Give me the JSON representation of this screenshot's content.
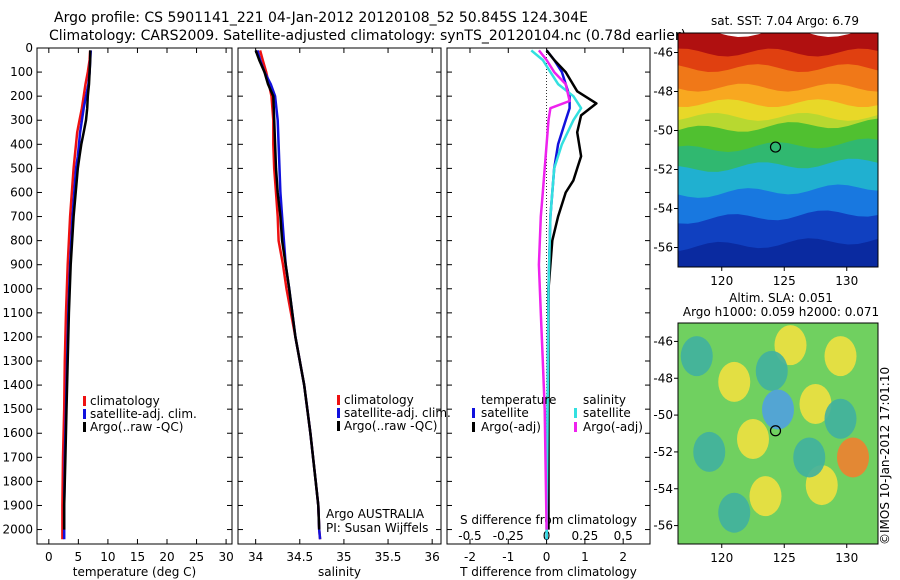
{
  "title": {
    "line1": "Argo profile: CS 5901141_221 04-Jan-2012 20120108_52 50.845S 124.304E",
    "line2": "Climatology: CARS2009. Satellite-adjusted climatology: synTS_20120104.nc (0.78d earlier)"
  },
  "credit": "©IMOS 10-Jan-2012 17:01:10",
  "colors": {
    "climatology": "#ee1111",
    "satellite": "#1111dd",
    "argo": "#000000",
    "sat_t": "#1111dd",
    "sat_s": "#33e0e0",
    "argo_s": "#ee22ee"
  },
  "chart_data": [
    {
      "id": "temperature",
      "type": "line",
      "xlabel": "temperature (deg C)",
      "ylabel": "",
      "xlim": [
        -2,
        31
      ],
      "ylim": [
        2060,
        0
      ],
      "x_ticks": [
        "0",
        "5",
        "10",
        "15",
        "20",
        "25",
        "30"
      ],
      "x_tick_values": [
        0,
        5,
        10,
        15,
        20,
        25,
        30
      ],
      "y_ticks": [
        "0",
        "100",
        "200",
        "300",
        "400",
        "500",
        "600",
        "700",
        "800",
        "900",
        "1000",
        "1100",
        "1200",
        "1300",
        "1400",
        "1500",
        "1600",
        "1700",
        "1800",
        "1900",
        "2000"
      ],
      "y_tick_values": [
        0,
        100,
        200,
        300,
        400,
        500,
        600,
        700,
        800,
        900,
        1000,
        1100,
        1200,
        1300,
        1400,
        1500,
        1600,
        1700,
        1800,
        1900,
        2000
      ],
      "legend": [
        "climatology",
        "satellite-adj. clim.",
        "Argo(..raw -QC)"
      ],
      "series": [
        {
          "name": "climatology",
          "color": "#ee1111",
          "x": [
            7.0,
            6.9,
            6.6,
            6.2,
            5.9,
            5.6,
            5.2,
            4.8,
            4.6,
            4.4,
            4.2,
            3.6,
            3.2,
            2.9,
            2.7,
            2.6,
            2.4,
            2.3,
            2.3
          ],
          "y": [
            10,
            50,
            100,
            150,
            200,
            250,
            300,
            350,
            400,
            450,
            500,
            700,
            900,
            1100,
            1300,
            1500,
            1700,
            1900,
            2040
          ]
        },
        {
          "name": "satellite-adj. clim.",
          "color": "#1111dd",
          "x": [
            7.1,
            7.0,
            6.9,
            6.7,
            6.3,
            5.9,
            5.6,
            5.3,
            5.1,
            4.9,
            4.6,
            4.0,
            3.6,
            3.3,
            3.1,
            2.9,
            2.7,
            2.6,
            2.6
          ],
          "y": [
            10,
            50,
            100,
            150,
            200,
            250,
            300,
            350,
            400,
            450,
            500,
            700,
            900,
            1100,
            1300,
            1500,
            1700,
            1900,
            2040
          ]
        },
        {
          "name": "Argo(..raw -QC)",
          "color": "#000000",
          "x": [
            7.0,
            7.0,
            6.9,
            6.8,
            6.6,
            6.5,
            6.3,
            5.9,
            5.5,
            5.2,
            4.9,
            4.2,
            3.7,
            3.4,
            3.2,
            3.0,
            2.8,
            2.6,
            2.6
          ],
          "y": [
            10,
            50,
            100,
            150,
            200,
            250,
            300,
            350,
            400,
            450,
            500,
            700,
            900,
            1100,
            1300,
            1500,
            1700,
            1900,
            2000
          ]
        }
      ]
    },
    {
      "id": "salinity",
      "type": "line",
      "xlabel": "salinity",
      "xlim": [
        33.8,
        36.1
      ],
      "ylim": [
        2060,
        0
      ],
      "x_ticks": [
        "34",
        "34.5",
        "35",
        "35.5",
        "36"
      ],
      "x_tick_values": [
        34,
        34.5,
        35,
        35.5,
        36
      ],
      "legend": [
        "climatology",
        "satellite-adj. clim.",
        "Argo(..raw -QC)"
      ],
      "annotations": [
        "Argo AUSTRALIA",
        "PI: Susan Wijffels"
      ],
      "series": [
        {
          "name": "climatology",
          "color": "#ee1111",
          "x": [
            34.05,
            34.08,
            34.12,
            34.15,
            34.18,
            34.2,
            34.2,
            34.21,
            34.23,
            34.25,
            34.26,
            34.31,
            34.35,
            34.45,
            34.55,
            34.62,
            34.68,
            34.71,
            34.72,
            34.73
          ],
          "y": [
            10,
            50,
            100,
            150,
            200,
            300,
            400,
            500,
            600,
            700,
            800,
            900,
            1000,
            1200,
            1400,
            1600,
            1800,
            1900,
            2000,
            2040
          ]
        },
        {
          "name": "satellite-adj. clim.",
          "color": "#1111dd",
          "x": [
            34.02,
            34.05,
            34.1,
            34.17,
            34.22,
            34.25,
            34.26,
            34.27,
            34.28,
            34.3,
            34.32,
            34.34,
            34.38,
            34.45,
            34.55,
            34.62,
            34.68,
            34.71,
            34.72,
            34.73
          ],
          "y": [
            10,
            50,
            100,
            150,
            200,
            300,
            400,
            500,
            600,
            700,
            800,
            900,
            1000,
            1200,
            1400,
            1600,
            1800,
            1900,
            2000,
            2040
          ]
        },
        {
          "name": "Argo(..raw -QC)",
          "color": "#000000",
          "x": [
            34.0,
            34.04,
            34.1,
            34.14,
            34.2,
            34.21,
            34.22,
            34.23,
            34.25,
            34.28,
            34.3,
            34.34,
            34.38,
            34.45,
            34.55,
            34.62,
            34.68,
            34.71,
            34.72
          ],
          "y": [
            10,
            50,
            100,
            150,
            200,
            300,
            400,
            500,
            600,
            700,
            800,
            900,
            1000,
            1200,
            1400,
            1600,
            1800,
            1900,
            2000
          ]
        }
      ]
    },
    {
      "id": "difference",
      "type": "line",
      "xlabel": "T difference from climatology",
      "xlabel_top": "S difference from climatology",
      "xlim": [
        -2.6,
        2.7
      ],
      "ylim": [
        2060,
        0
      ],
      "x_ticks": [
        "-2",
        "-1",
        "0",
        "1",
        "2"
      ],
      "x_tick_values": [
        -2,
        -1,
        0,
        1,
        2
      ],
      "s_ticks": [
        "-0.5",
        "-0.25",
        "0",
        "0.25",
        "0.5"
      ],
      "s_tick_values": [
        -0.5,
        -0.25,
        0,
        0.25,
        0.5
      ],
      "legend_temperature": {
        "heading": "temperature",
        "items": [
          "satellite",
          "Argo(-adj)"
        ]
      },
      "legend_salinity": {
        "heading": "salinity",
        "items": [
          "satellite",
          "Argo(-adj)"
        ]
      },
      "series": [
        {
          "name": "satellite",
          "group": "temperature",
          "color": "#1111dd",
          "x": [
            0.0,
            0.2,
            0.4,
            0.5,
            0.6,
            0.6,
            0.5,
            0.3,
            0.2,
            0.1,
            0.05,
            0.0
          ],
          "y": [
            10,
            50,
            100,
            150,
            200,
            250,
            300,
            400,
            500,
            700,
            1000,
            2040
          ]
        },
        {
          "name": "Argo(-adj)",
          "group": "temperature",
          "color": "#000000",
          "x": [
            0.0,
            0.2,
            0.5,
            0.8,
            1.3,
            0.9,
            0.8,
            0.9,
            0.8,
            0.7,
            0.5,
            0.3,
            0.15,
            0.05,
            0.05,
            0.05
          ],
          "y": [
            10,
            50,
            100,
            180,
            230,
            280,
            350,
            450,
            500,
            550,
            600,
            700,
            800,
            1000,
            1500,
            2000
          ]
        },
        {
          "name": "satellite",
          "group": "salinity",
          "color": "#33e0e0",
          "x": [
            -0.4,
            -0.1,
            0.1,
            0.3,
            0.7,
            0.9,
            0.7,
            0.4,
            0.2,
            0.1,
            0.05,
            0.0
          ],
          "y": [
            10,
            50,
            100,
            150,
            200,
            250,
            300,
            400,
            500,
            700,
            1000,
            2040
          ]
        },
        {
          "name": "Argo(-adj)",
          "group": "salinity",
          "color": "#ee22ee",
          "x": [
            -0.2,
            0.0,
            0.2,
            0.5,
            0.6,
            0.1,
            0.05,
            -0.05,
            -0.1,
            -0.15,
            -0.2,
            -0.15,
            -0.1,
            -0.05,
            0.0
          ],
          "y": [
            10,
            50,
            100,
            150,
            220,
            250,
            300,
            500,
            600,
            700,
            900,
            1100,
            1300,
            1500,
            2000
          ]
        }
      ]
    },
    {
      "id": "sst_map",
      "type": "heatmap",
      "title": "sat. SST: 7.04 Argo: 6.79",
      "xlim": [
        116.5,
        132.5
      ],
      "ylim": [
        -57,
        -45
      ],
      "x_ticks": [
        "120",
        "125",
        "130"
      ],
      "x_tick_values": [
        120,
        125,
        130
      ],
      "y_ticks": [
        "-46",
        "-48",
        "-50",
        "-52",
        "-54",
        "-56"
      ],
      "y_tick_values": [
        -46,
        -48,
        -50,
        -52,
        -54,
        -56
      ],
      "marker": {
        "lon": 124.3,
        "lat": -50.85
      },
      "bands": [
        {
          "lat_top": -45.0,
          "color": "#b01010"
        },
        {
          "lat_top": -46.0,
          "color": "#e04010"
        },
        {
          "lat_top": -46.8,
          "color": "#f07818"
        },
        {
          "lat_top": -47.8,
          "color": "#f8a820"
        },
        {
          "lat_top": -48.6,
          "color": "#e8d828"
        },
        {
          "lat_top": -49.3,
          "color": "#b8d830"
        },
        {
          "lat_top": -50.0,
          "color": "#50c030"
        },
        {
          "lat_top": -51.0,
          "color": "#30b870"
        },
        {
          "lat_top": -52.0,
          "color": "#20b0d0"
        },
        {
          "lat_top": -53.3,
          "color": "#1878e0"
        },
        {
          "lat_top": -54.6,
          "color": "#1040c0"
        },
        {
          "lat_top": -56.0,
          "color": "#0a2aa0"
        }
      ]
    },
    {
      "id": "sla_map",
      "type": "heatmap",
      "title_line1": "Altim. SLA: 0.051",
      "title_line2": "Argo h1000: 0.059 h2000: 0.071",
      "xlim": [
        116.5,
        132.5
      ],
      "ylim": [
        -57,
        -45
      ],
      "x_ticks": [
        "120",
        "125",
        "130"
      ],
      "x_tick_values": [
        120,
        125,
        130
      ],
      "y_ticks": [
        "-46",
        "-48",
        "-50",
        "-52",
        "-54",
        "-56"
      ],
      "y_tick_values": [
        -46,
        -48,
        -50,
        -52,
        -54,
        -56
      ],
      "marker": {
        "lon": 124.3,
        "lat": -50.85
      },
      "background": "#70d060",
      "blobs": [
        {
          "lon": 125.5,
          "lat": -46.2,
          "color": "#f0e040"
        },
        {
          "lon": 129.5,
          "lat": -46.8,
          "color": "#f0e040"
        },
        {
          "lon": 121.0,
          "lat": -48.2,
          "color": "#f0e040"
        },
        {
          "lon": 127.5,
          "lat": -49.4,
          "color": "#f0e040"
        },
        {
          "lon": 122.5,
          "lat": -51.3,
          "color": "#f0e040"
        },
        {
          "lon": 130.5,
          "lat": -52.3,
          "color": "#f08030"
        },
        {
          "lon": 123.5,
          "lat": -54.4,
          "color": "#f0e040"
        },
        {
          "lon": 128.0,
          "lat": -53.8,
          "color": "#f0e040"
        },
        {
          "lon": 118.0,
          "lat": -46.8,
          "color": "#40b0a0"
        },
        {
          "lon": 124.0,
          "lat": -47.6,
          "color": "#40b0a0"
        },
        {
          "lon": 124.5,
          "lat": -49.7,
          "color": "#50a0e0"
        },
        {
          "lon": 119.0,
          "lat": -52.0,
          "color": "#40b0a0"
        },
        {
          "lon": 127.0,
          "lat": -52.3,
          "color": "#40b0a0"
        },
        {
          "lon": 121.0,
          "lat": -55.3,
          "color": "#40b0a0"
        },
        {
          "lon": 129.5,
          "lat": -50.2,
          "color": "#40b0a0"
        }
      ]
    }
  ]
}
